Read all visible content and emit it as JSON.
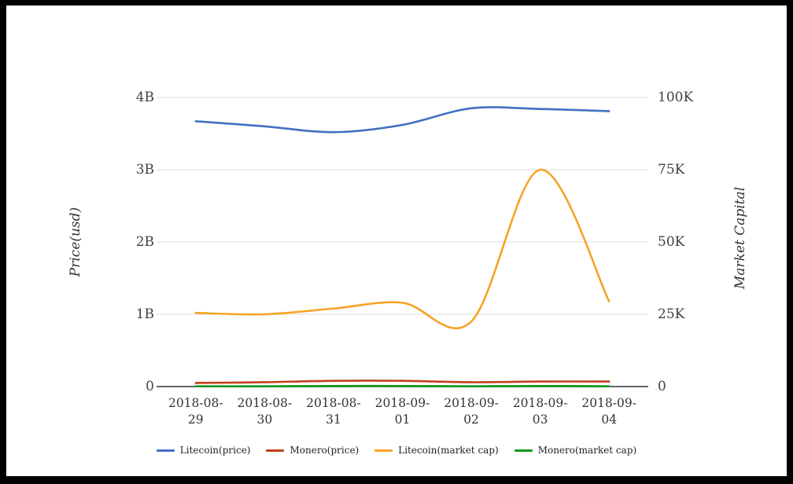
{
  "frame": {
    "border_color": "#000000",
    "background": "#ffffff"
  },
  "colors": {
    "litecoin_price": "#4170c4",
    "monero_price": "#c43e1c",
    "litecoin_market_cap": "#f6a325",
    "monero_market_cap": "#109618",
    "gridline": "#dcdcdc",
    "axis_baseline": "#333333",
    "tick_text": "#424242",
    "x_label_text": "#333333",
    "legend_text": "#222222"
  },
  "chart_data": {
    "type": "line",
    "title": "",
    "categories": [
      "2018-08-29",
      "2018-08-30",
      "2018-08-31",
      "2018-09-01",
      "2018-09-02",
      "2018-09-03",
      "2018-09-04"
    ],
    "series": [
      {
        "name": "Litecoin(price)",
        "axis": "left",
        "color": "#4170c4",
        "values": [
          3.67,
          3.6,
          3.52,
          3.62,
          3.85,
          3.84,
          3.81
        ]
      },
      {
        "name": "Monero(price)",
        "axis": "left",
        "color": "#c43e1c",
        "values": [
          0.05,
          0.06,
          0.08,
          0.08,
          0.06,
          0.07,
          0.07
        ]
      },
      {
        "name": "Litecoin(market cap)",
        "axis": "right",
        "color": "#f6a325",
        "values": [
          25.5,
          25.0,
          27.0,
          29.0,
          22.5,
          75.0,
          29.5
        ]
      },
      {
        "name": "Monero(market cap)",
        "axis": "right",
        "color": "#109618",
        "values": [
          0.1,
          0.1,
          0.2,
          0.2,
          0.1,
          0.2,
          0.1
        ]
      }
    ],
    "left_axis": {
      "title": "Price(usd)",
      "ticks": [
        "0",
        "1B",
        "2B",
        "3B",
        "4B"
      ],
      "tick_values": [
        0,
        1,
        2,
        3,
        4
      ],
      "range": [
        0,
        4
      ]
    },
    "right_axis": {
      "title": "Market Capital",
      "ticks": [
        "0",
        "25K",
        "50K",
        "75K",
        "100K"
      ],
      "tick_values": [
        0,
        25,
        50,
        75,
        100
      ],
      "range": [
        0,
        100
      ]
    },
    "grid": true,
    "legend_position": "bottom"
  }
}
